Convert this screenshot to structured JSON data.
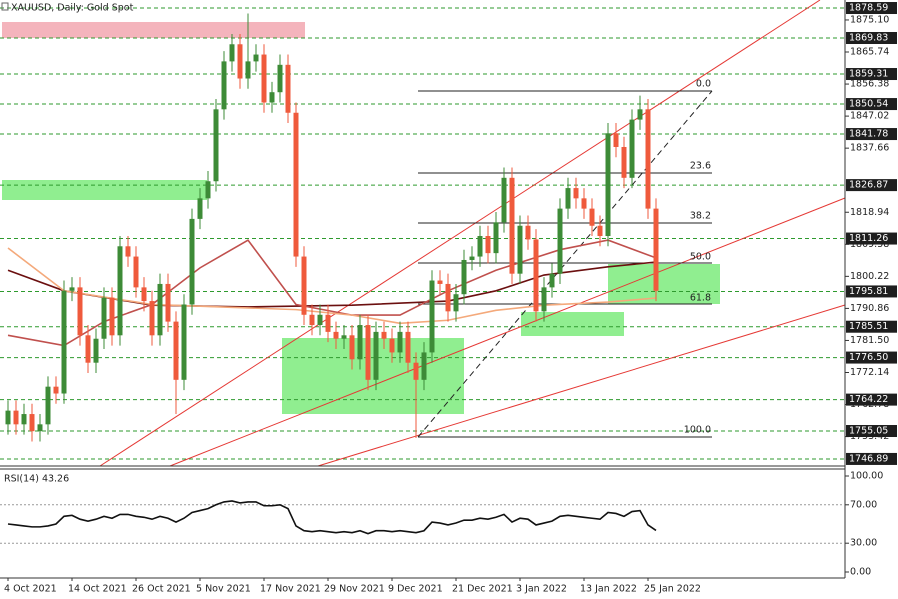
{
  "chart_data": {
    "type": "candlestick",
    "title": "XAUUSD, Daily: Gold Spot",
    "categories": [
      "4 Oct 2021",
      null,
      null,
      null,
      null,
      null,
      null,
      null,
      "14 Oct 2021",
      null,
      null,
      null,
      null,
      null,
      null,
      null,
      "26 Oct 2021",
      null,
      null,
      null,
      null,
      null,
      null,
      null,
      "5 Nov 2021",
      null,
      null,
      null,
      null,
      null,
      null,
      null,
      "17 Nov 2021",
      null,
      null,
      null,
      null,
      null,
      null,
      null,
      "29 Nov 2021",
      null,
      null,
      null,
      null,
      null,
      null,
      null,
      "9 Dec 2021",
      null,
      null,
      null,
      null,
      null,
      null,
      null,
      "21 Dec 2021",
      null,
      null,
      null,
      null,
      null,
      null,
      null,
      "3 Jan 2022",
      null,
      null,
      null,
      null,
      null,
      null,
      null,
      "13 Jan 2022",
      null,
      null,
      null,
      null,
      null,
      null,
      null,
      "25 Jan 2022",
      null
    ],
    "open": [
      1757,
      1761,
      1757,
      1760,
      1755,
      1757,
      1768,
      1766,
      1796,
      1797,
      1783,
      1775,
      1782,
      1794,
      1783,
      1809,
      1806,
      1797,
      1793,
      1783,
      1798,
      1787,
      1770,
      1792,
      1817,
      1823,
      1828,
      1849,
      1863,
      1868,
      1858,
      1863,
      1865,
      1851,
      1854,
      1862,
      1848,
      1806,
      1789,
      1786,
      1789,
      1784,
      1782,
      1783,
      1776,
      1786,
      1770,
      1784,
      1782,
      1778,
      1784,
      1775,
      1770,
      1778,
      1799,
      1798,
      1790,
      1795,
      1805,
      1806,
      1812,
      1807,
      1816,
      1829,
      1801,
      1815,
      1811,
      1790,
      1797,
      1801,
      1820,
      1826,
      1823,
      1820,
      1815,
      1812,
      1842,
      1838,
      1829,
      1846,
      1849,
      1820
    ],
    "high": [
      1764,
      1764,
      1763,
      1763,
      1760,
      1771,
      1771,
      1799,
      1800,
      1800,
      1786,
      1785,
      1797,
      1797,
      1812,
      1812,
      1809,
      1800,
      1796,
      1801,
      1801,
      1790,
      1795,
      1820,
      1826,
      1831,
      1852,
      1866,
      1871,
      1871,
      1877,
      1868,
      1868,
      1857,
      1865,
      1865,
      1851,
      1809,
      1792,
      1792,
      1792,
      1787,
      1786,
      1786,
      1789,
      1789,
      1787,
      1787,
      1785,
      1787,
      1787,
      1778,
      1781,
      1802,
      1802,
      1801,
      1798,
      1808,
      1809,
      1815,
      1815,
      1819,
      1832,
      1832,
      1818,
      1818,
      1814,
      1800,
      1804,
      1823,
      1829,
      1829,
      1826,
      1823,
      1818,
      1845,
      1845,
      1841,
      1849,
      1853,
      1852,
      1823
    ],
    "low": [
      1754,
      1754,
      1754,
      1752,
      1752,
      1754,
      1763,
      1763,
      1793,
      1780,
      1772,
      1772,
      1779,
      1780,
      1780,
      1803,
      1794,
      1790,
      1780,
      1780,
      1784,
      1760,
      1767,
      1789,
      1814,
      1820,
      1825,
      1846,
      1860,
      1855,
      1855,
      1860,
      1848,
      1848,
      1851,
      1845,
      1803,
      1786,
      1783,
      1783,
      1781,
      1779,
      1779,
      1773,
      1773,
      1767,
      1767,
      1779,
      1775,
      1775,
      1772,
      1753,
      1767,
      1775,
      1795,
      1787,
      1787,
      1792,
      1802,
      1803,
      1804,
      1804,
      1813,
      1798,
      1798,
      1808,
      1787,
      1787,
      1794,
      1798,
      1817,
      1820,
      1817,
      1812,
      1809,
      1809,
      1835,
      1826,
      1826,
      1843,
      1817,
      1793
    ],
    "close": [
      1761,
      1757,
      1760,
      1755,
      1757,
      1768,
      1766,
      1796,
      1797,
      1783,
      1775,
      1782,
      1794,
      1783,
      1809,
      1806,
      1797,
      1793,
      1783,
      1798,
      1787,
      1770,
      1792,
      1817,
      1823,
      1828,
      1849,
      1863,
      1868,
      1858,
      1863,
      1865,
      1851,
      1854,
      1862,
      1848,
      1806,
      1789,
      1786,
      1789,
      1784,
      1782,
      1783,
      1776,
      1786,
      1770,
      1784,
      1782,
      1778,
      1784,
      1775,
      1770,
      1778,
      1799,
      1798,
      1790,
      1795,
      1805,
      1806,
      1812,
      1807,
      1816,
      1829,
      1801,
      1815,
      1811,
      1790,
      1797,
      1801,
      1820,
      1826,
      1823,
      1820,
      1815,
      1812,
      1842,
      1838,
      1829,
      1846,
      1849,
      1820,
      1796
    ],
    "up_color": "#3d8b37",
    "down_color": "#ef5a3c",
    "ylim": [
      1744.83,
      1880.93
    ],
    "yticks": [
      {
        "value": 1875.1,
        "label": "1875.10"
      },
      1865.74,
      1856.38,
      1847.02,
      1837.66,
      1818.94,
      1809.58,
      1800.22,
      1790.86,
      {
        "value": 1781.5,
        "label": "1781.50"
      },
      1772.14,
      1762.78,
      1753.42
    ],
    "levels": [
      1878.59,
      1869.83,
      1859.31,
      1850.54,
      1841.78,
      1826.87,
      1811.26,
      1795.81,
      1785.51,
      {
        "value": 1776.5,
        "label": "1776.50"
      },
      1764.22,
      1755.05,
      1746.89
    ],
    "level_color": "#2e9a2e",
    "ma": [
      {
        "color": "#6b0f0f",
        "x": [
          0,
          7,
          18,
          30,
          43,
          55,
          61,
          67,
          75,
          81
        ],
        "values": [
          1802,
          1796,
          1791.8,
          1791.3,
          1791.8,
          1793,
          1796,
          1800.6,
          1803,
          1804.4
        ]
      },
      {
        "color": "#c0504d",
        "x": [
          0,
          7,
          12,
          18,
          24,
          30,
          36,
          43,
          49,
          55,
          61,
          69,
          75,
          81
        ],
        "values": [
          1783,
          1780,
          1787,
          1792,
          1802.7,
          1810.8,
          1792,
          1788.9,
          1788.9,
          1796,
          1802,
          1808,
          1810.8,
          1805.6
        ]
      },
      {
        "color": "#f4a97b",
        "x": [
          0,
          7,
          18,
          24,
          30,
          36,
          43,
          49,
          55,
          61,
          67,
          75,
          81
        ],
        "values": [
          1808.5,
          1796,
          1792,
          1791.5,
          1791,
          1790.5,
          1788.9,
          1786.5,
          1787.4,
          1790.3,
          1791.8,
          1792.7,
          1793.9
        ]
      }
    ],
    "fib_labels": [
      "0.0",
      "23.6",
      "38.2",
      "50.0",
      "61.8",
      "100.0"
    ],
    "rsi": {
      "label": "RSI(14) 43.26",
      "color": "#111111",
      "values": [
        50,
        49,
        48,
        47,
        47,
        48,
        50,
        58,
        59,
        55,
        53,
        55,
        58,
        56,
        60,
        60,
        58,
        57,
        55,
        58,
        56,
        52,
        56,
        62,
        64,
        66,
        70,
        73,
        74,
        72,
        73,
        73,
        69,
        69,
        70,
        66,
        48,
        43,
        42,
        43,
        42,
        41,
        42,
        41,
        43,
        40,
        43,
        43,
        42,
        43,
        42,
        41,
        43,
        52,
        51,
        49,
        51,
        54,
        54,
        56,
        55,
        57,
        60,
        52,
        56,
        55,
        49,
        51,
        53,
        58,
        59,
        58,
        57,
        56,
        55,
        62,
        61,
        58,
        63,
        64,
        49,
        43.26
      ],
      "ylim": [
        -6.25,
        106.25
      ],
      "yticks": [
        {
          "value": 100,
          "label": "100.00"
        },
        {
          "value": 70,
          "label": "70.00"
        },
        {
          "value": 30,
          "label": "30.00"
        },
        {
          "value": 0,
          "label": "0.00"
        }
      ]
    }
  }
}
